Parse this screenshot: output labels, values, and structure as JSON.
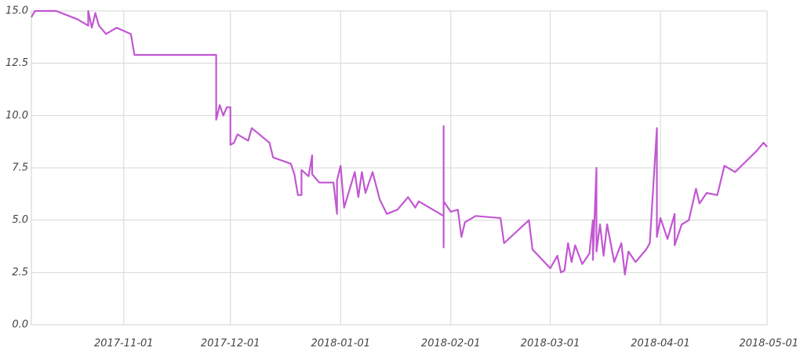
{
  "chart_data": {
    "type": "line",
    "color": "#c257d2",
    "grid": true,
    "xlim": [
      "2017-10-06",
      "2018-05-01"
    ],
    "xticks": [
      "2017-11-01",
      "2017-12-01",
      "2018-01-01",
      "2018-02-01",
      "2018-03-01",
      "2018-04-01",
      "2018-05-01"
    ],
    "ylim": [
      0,
      15
    ],
    "yticks": [
      {
        "value": 0,
        "label": "0.0"
      },
      2.5,
      {
        "value": 5,
        "label": "5.0"
      },
      7.5,
      {
        "value": 10,
        "label": "10.0"
      },
      12.5,
      {
        "value": 15,
        "label": "15.0"
      }
    ],
    "x": [
      "2017-10-06",
      "2017-10-07",
      "2017-10-08",
      "2017-10-13",
      "2017-10-16",
      "2017-10-19",
      "2017-10-22",
      "2017-10-22",
      "2017-10-23",
      "2017-10-24",
      "2017-10-25",
      "2017-10-27",
      "2017-10-30",
      "2017-11-03",
      "2017-11-04",
      "2017-11-27",
      "2017-11-27",
      "2017-11-28",
      "2017-11-29",
      "2017-11-30",
      "2017-12-01",
      "2017-12-01",
      "2017-12-02",
      "2017-12-03",
      "2017-12-06",
      "2017-12-07",
      "2017-12-12",
      "2017-12-13",
      "2017-12-18",
      "2017-12-19",
      "2017-12-20",
      "2017-12-21",
      "2017-12-21",
      "2017-12-23",
      "2017-12-24",
      "2017-12-24",
      "2017-12-26",
      "2017-12-30",
      "2017-12-31",
      "2017-12-31",
      "2018-01-01",
      "2018-01-02",
      "2018-01-05",
      "2018-01-06",
      "2018-01-07",
      "2018-01-08",
      "2018-01-10",
      "2018-01-12",
      "2018-01-14",
      "2018-01-17",
      "2018-01-20",
      "2018-01-22",
      "2018-01-23",
      "2018-01-30",
      "2018-01-30",
      "2018-01-30",
      "2018-01-30",
      "2018-02-01",
      "2018-02-03",
      "2018-02-04",
      "2018-02-05",
      "2018-02-08",
      "2018-02-15",
      "2018-02-16",
      "2018-02-23",
      "2018-02-24",
      "2018-03-01",
      "2018-03-03",
      "2018-03-04",
      "2018-03-05",
      "2018-03-06",
      "2018-03-07",
      "2018-03-08",
      "2018-03-10",
      "2018-03-12",
      "2018-03-13",
      "2018-03-13",
      "2018-03-14",
      "2018-03-14",
      "2018-03-15",
      "2018-03-16",
      "2018-03-17",
      "2018-03-19",
      "2018-03-21",
      "2018-03-22",
      "2018-03-23",
      "2018-03-25",
      "2018-03-28",
      "2018-03-29",
      "2018-03-31",
      "2018-03-31",
      "2018-04-01",
      "2018-04-03",
      "2018-04-05",
      "2018-04-05",
      "2018-04-07",
      "2018-04-09",
      "2018-04-11",
      "2018-04-12",
      "2018-04-14",
      "2018-04-17",
      "2018-04-19",
      "2018-04-22",
      "2018-04-25",
      "2018-04-28",
      "2018-04-30",
      "2018-05-01"
    ],
    "values": [
      14.7,
      15.0,
      15.0,
      15.0,
      14.8,
      14.6,
      14.3,
      15.0,
      14.2,
      14.9,
      14.3,
      13.9,
      14.2,
      13.9,
      12.9,
      12.9,
      9.8,
      10.5,
      10.0,
      10.4,
      10.4,
      8.6,
      8.7,
      9.1,
      8.8,
      9.4,
      8.7,
      8.0,
      7.7,
      7.2,
      6.2,
      6.2,
      7.4,
      7.1,
      8.1,
      7.2,
      6.8,
      6.8,
      5.3,
      6.9,
      7.6,
      5.6,
      7.3,
      6.1,
      7.3,
      6.3,
      7.3,
      6.0,
      5.3,
      5.5,
      6.1,
      5.6,
      5.9,
      5.2,
      3.7,
      9.5,
      5.9,
      5.4,
      5.5,
      4.2,
      4.9,
      5.2,
      5.1,
      3.9,
      5.0,
      3.6,
      2.7,
      3.3,
      2.5,
      2.6,
      3.9,
      3.0,
      3.8,
      2.9,
      3.4,
      5.0,
      3.1,
      7.5,
      3.5,
      4.8,
      3.3,
      4.8,
      3.0,
      3.9,
      2.4,
      3.5,
      3.0,
      3.6,
      3.9,
      9.4,
      4.2,
      5.1,
      4.1,
      5.3,
      3.8,
      4.8,
      5.0,
      6.5,
      5.8,
      6.3,
      6.2,
      7.6,
      7.3,
      7.8,
      8.3,
      8.7,
      8.5
    ]
  }
}
